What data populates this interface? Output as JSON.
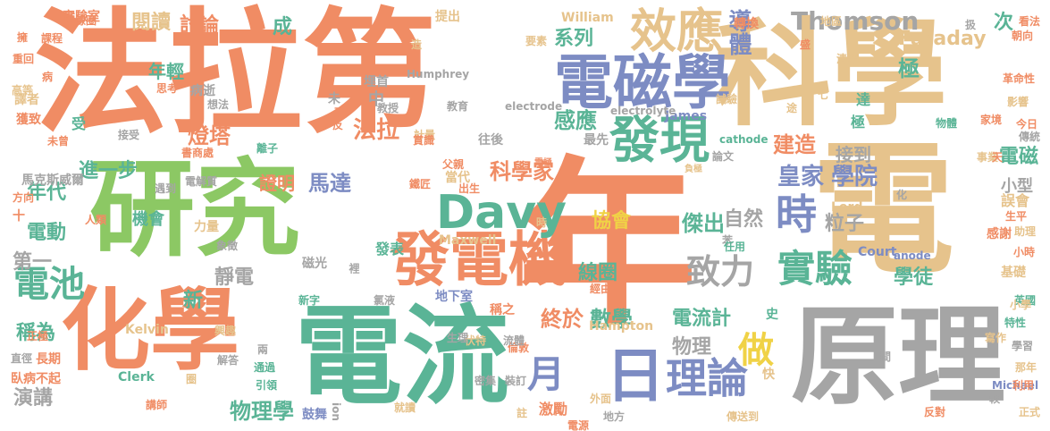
{
  "palette": {
    "orange": "#f08c64",
    "green": "#8cc864",
    "teal": "#5ab496",
    "tan": "#e6c38c",
    "gray": "#a5a5a5",
    "blue": "#7d8cc3",
    "yellow": "#f0d246",
    "pink": "#e196c8"
  },
  "words": [
    "法拉第",
    "科學",
    "年",
    "研究",
    "電",
    "化學",
    "電流",
    "原理",
    "發電機",
    "電磁學",
    "發現",
    "效應",
    "Davy",
    "時",
    "實驗",
    "日",
    "理論",
    "月",
    "致力",
    "電池",
    "皇家",
    "學院",
    "Thomson",
    "Faraday",
    "做",
    "導體",
    "科學家",
    "感應",
    "法拉",
    "馬達",
    "數學",
    "終於",
    "物理",
    "建造",
    "電磁",
    "稱為",
    "靜電",
    "線圈",
    "電流計",
    "學徒",
    "傑出",
    "協會",
    "自然",
    "粒子",
    "演講",
    "年代",
    "電動",
    "第一",
    "機會",
    "證明",
    "進一步",
    "物理學",
    "新",
    "燈塔",
    "閱讀",
    "討論",
    "成",
    "年輕",
    "系列",
    "實驗室",
    "病逝",
    "接到",
    "小型",
    "極",
    "次",
    "當代",
    "William",
    "Maxwell",
    "Lord",
    "James",
    "Kelvin",
    "Clerk",
    "Hampton",
    "Court",
    "Michael",
    "Humphrey",
    "ion",
    "anode",
    "cathode",
    "electrode",
    "electrolyte",
    "馬克斯威爾",
    "地下室",
    "往後",
    "最先",
    "中",
    "埋首",
    "磁光",
    "講師",
    "鼓舞",
    "長期",
    "臥病不起",
    "力量",
    "遇到",
    "電極",
    "轉換",
    "提出",
    "要素",
    "助理",
    "感謝",
    "英國",
    "革命性",
    "影響",
    "傳統",
    "事業",
    "今日",
    "論文",
    "負極",
    "正極",
    "直徑",
    "解答",
    "興趣",
    "思考",
    "譯者",
    "獲致",
    "接受",
    "書商處",
    "想法",
    "教授",
    "教育",
    "計量",
    "父親",
    "出生",
    "達",
    "極",
    "誤會",
    "生平",
    "小時",
    "基礎",
    "特性",
    "學習",
    "那年",
    "利用",
    "正式",
    "反對",
    "傳送到",
    "地方",
    "外面",
    "激勵",
    "註",
    "裝訂",
    "密集",
    "倫敦",
    "流體",
    "伏特",
    "生理",
    "稱之",
    "經由",
    "發表",
    "象徵",
    "賞識",
    "裡",
    "氯液",
    "新字",
    "兩",
    "通過",
    "引領",
    "人類",
    "方向",
    "課程",
    "重回",
    "高等",
    "未曾",
    "銅線圈",
    "電解質",
    "鐵匠",
    "家境",
    "天",
    "小學",
    "寫作",
    "看法",
    "朝向",
    "地區",
    "清寒",
    "盛",
    "途",
    "七",
    "物體",
    "化",
    "間",
    "史",
    "快",
    "就讀",
    "未",
    "反",
    "更",
    "造",
    "受",
    "離子",
    "試驗",
    "苯",
    "任用",
    "圈",
    "時",
    "十",
    "病",
    "擁",
    "扱",
    "電源",
    "較"
  ]
}
